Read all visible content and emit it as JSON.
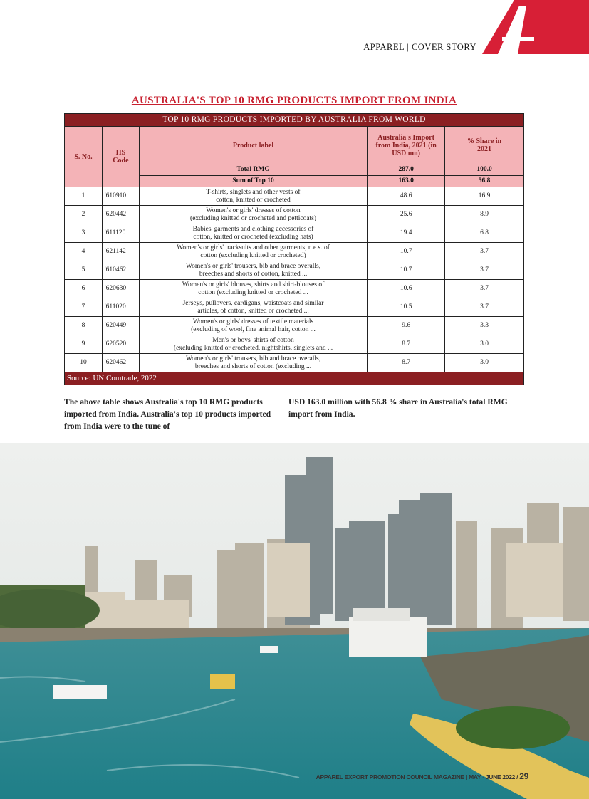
{
  "header": {
    "section": "APPAREL | COVER STORY"
  },
  "title": "AUSTRALIA'S TOP 10 RMG PRODUCTS IMPORT FROM INDIA",
  "table": {
    "band": "TOP 10 RMG PRODUCTS IMPORTED BY AUSTRALIA FROM WORLD",
    "headers": {
      "sno": "S. No.",
      "hs": "HS Code",
      "label": "Product label",
      "import": "Australia's Import from India, 2021 (in USD mn)",
      "share": "% Share in 2021"
    },
    "total": {
      "label": "Total RMG",
      "import": "287.0",
      "share": "100.0"
    },
    "sum": {
      "label": "Sum of Top 10",
      "import": "163.0",
      "share": "56.8"
    },
    "rows": [
      {
        "sno": "1",
        "hs": "'610910",
        "l1": "T-shirts, singlets and other vests of",
        "l2": "cotton, knitted or crocheted",
        "import": "48.6",
        "share": "16.9"
      },
      {
        "sno": "2",
        "hs": "'620442",
        "l1": "Women's or girls' dresses of cotton",
        "l2": "(excluding knitted or crocheted and petticoats)",
        "import": "25.6",
        "share": "8.9"
      },
      {
        "sno": "3",
        "hs": "'611120",
        "l1": "Babies' garments and clothing accessories of",
        "l2": "cotton, knitted or crocheted (excluding hats)",
        "import": "19.4",
        "share": "6.8"
      },
      {
        "sno": "4",
        "hs": "'621142",
        "l1": "Women's or girls' tracksuits and other garments, n.e.s. of",
        "l2": "cotton (excluding knitted or crocheted)",
        "import": "10.7",
        "share": "3.7"
      },
      {
        "sno": "5",
        "hs": "'610462",
        "l1": "Women's or girls' trousers, bib and brace overalls,",
        "l2": "breeches and shorts of cotton, knitted ...",
        "import": "10.7",
        "share": "3.7"
      },
      {
        "sno": "6",
        "hs": "'620630",
        "l1": "Women's or girls' blouses, shirts and shirt-blouses of",
        "l2": "cotton (excluding knitted or crocheted ...",
        "import": "10.6",
        "share": "3.7"
      },
      {
        "sno": "7",
        "hs": "'611020",
        "l1": "Jerseys, pullovers, cardigans, waistcoats and similar",
        "l2": "articles, of cotton, knitted or crocheted ...",
        "import": "10.5",
        "share": "3.7"
      },
      {
        "sno": "8",
        "hs": "'620449",
        "l1": "Women's or girls' dresses of textile materials",
        "l2": "(excluding of wool, fine animal hair, cotton ...",
        "import": "9.6",
        "share": "3.3"
      },
      {
        "sno": "9",
        "hs": "'620520",
        "l1": "Men's or boys' shirts of cotton",
        "l2": "(excluding knitted or crocheted, nightshirts, singlets and ...",
        "import": "8.7",
        "share": "3.0"
      },
      {
        "sno": "10",
        "hs": "'620462",
        "l1": "Women's or girls' trousers, bib and brace overalls,",
        "l2": "breeches and shorts of cotton (excluding ...",
        "import": "8.7",
        "share": "3.0"
      }
    ],
    "source": "Source: UN Comtrade, 2022"
  },
  "body": {
    "col1": "The above table shows Australia's top 10 RMG products imported from India. Australia's top 10 products imported from India were to the tune of",
    "col2": "USD 163.0 million with 56.8 % share in Australia's total RMG import from India."
  },
  "footer": {
    "text": "APPAREL EXPORT PROMOTION COUNCIL MAGAZINE | MAY - JUNE 2022 /",
    "page": "29"
  },
  "colors": {
    "brand_red": "#c8202f",
    "band": "#8b1f22",
    "header_pink": "#f4b3b7"
  }
}
